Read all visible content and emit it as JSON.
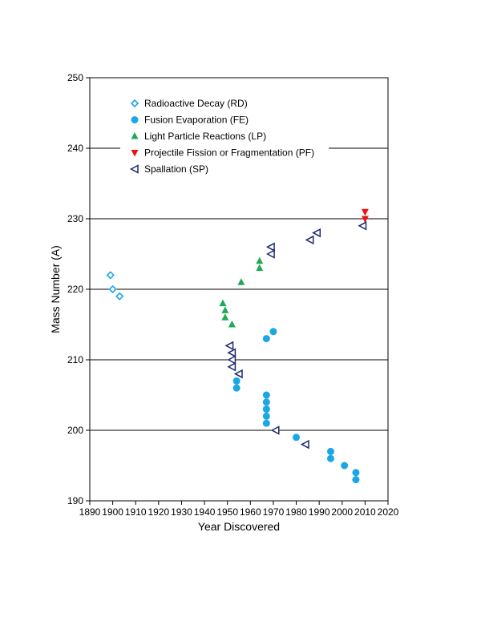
{
  "chart_data": {
    "type": "scatter",
    "title": "",
    "xlabel": "Year Discovered",
    "ylabel": "Mass Number (A)",
    "xlim": [
      1890,
      2020
    ],
    "ylim": [
      190,
      250
    ],
    "x_ticks": [
      1890,
      1900,
      1910,
      1920,
      1930,
      1940,
      1950,
      1960,
      1970,
      1980,
      1990,
      2000,
      2010,
      2020
    ],
    "y_ticks": [
      190,
      200,
      210,
      220,
      230,
      240,
      250
    ],
    "grid": "horizontal",
    "legend_position": "top-left",
    "series": [
      {
        "name": "Radioactive Decay (RD)",
        "marker": "diamond-open",
        "color": "#1aa7e6",
        "points": [
          [
            1899,
            222
          ],
          [
            1900,
            220
          ],
          [
            1903,
            219
          ]
        ]
      },
      {
        "name": "Fusion Evaporation (FE)",
        "marker": "circle",
        "color": "#1aa7e6",
        "points": [
          [
            1954,
            207
          ],
          [
            1954,
            206
          ],
          [
            1967,
            213
          ],
          [
            1970,
            214
          ],
          [
            1967,
            205
          ],
          [
            1967,
            204
          ],
          [
            1967,
            203
          ],
          [
            1967,
            202
          ],
          [
            1967,
            201
          ],
          [
            1980,
            199
          ],
          [
            1995,
            197
          ],
          [
            1995,
            196
          ],
          [
            2001,
            195
          ],
          [
            2006,
            194
          ],
          [
            2006,
            193
          ]
        ]
      },
      {
        "name": "Light Particle Reactions (LP)",
        "marker": "triangle-up",
        "color": "#1faa55",
        "points": [
          [
            1948,
            218
          ],
          [
            1949,
            217
          ],
          [
            1949,
            216
          ],
          [
            1952,
            215
          ],
          [
            1956,
            221
          ],
          [
            1964,
            224
          ],
          [
            1964,
            223
          ]
        ]
      },
      {
        "name": "Projectile Fission or Fragmentation (PF)",
        "marker": "triangle-down",
        "color": "#ee1111",
        "points": [
          [
            2010,
            231
          ],
          [
            2010,
            230
          ]
        ]
      },
      {
        "name": "Spallation (SP)",
        "marker": "triangle-left-open",
        "color": "#1c2a6e",
        "points": [
          [
            1951,
            212
          ],
          [
            1952,
            211
          ],
          [
            1952,
            210
          ],
          [
            1952,
            209
          ],
          [
            1955,
            208
          ],
          [
            1969,
            226
          ],
          [
            1969,
            225
          ],
          [
            1971,
            200
          ],
          [
            1984,
            198
          ],
          [
            1986,
            227
          ],
          [
            1989,
            228
          ],
          [
            2009,
            229
          ]
        ]
      }
    ]
  }
}
